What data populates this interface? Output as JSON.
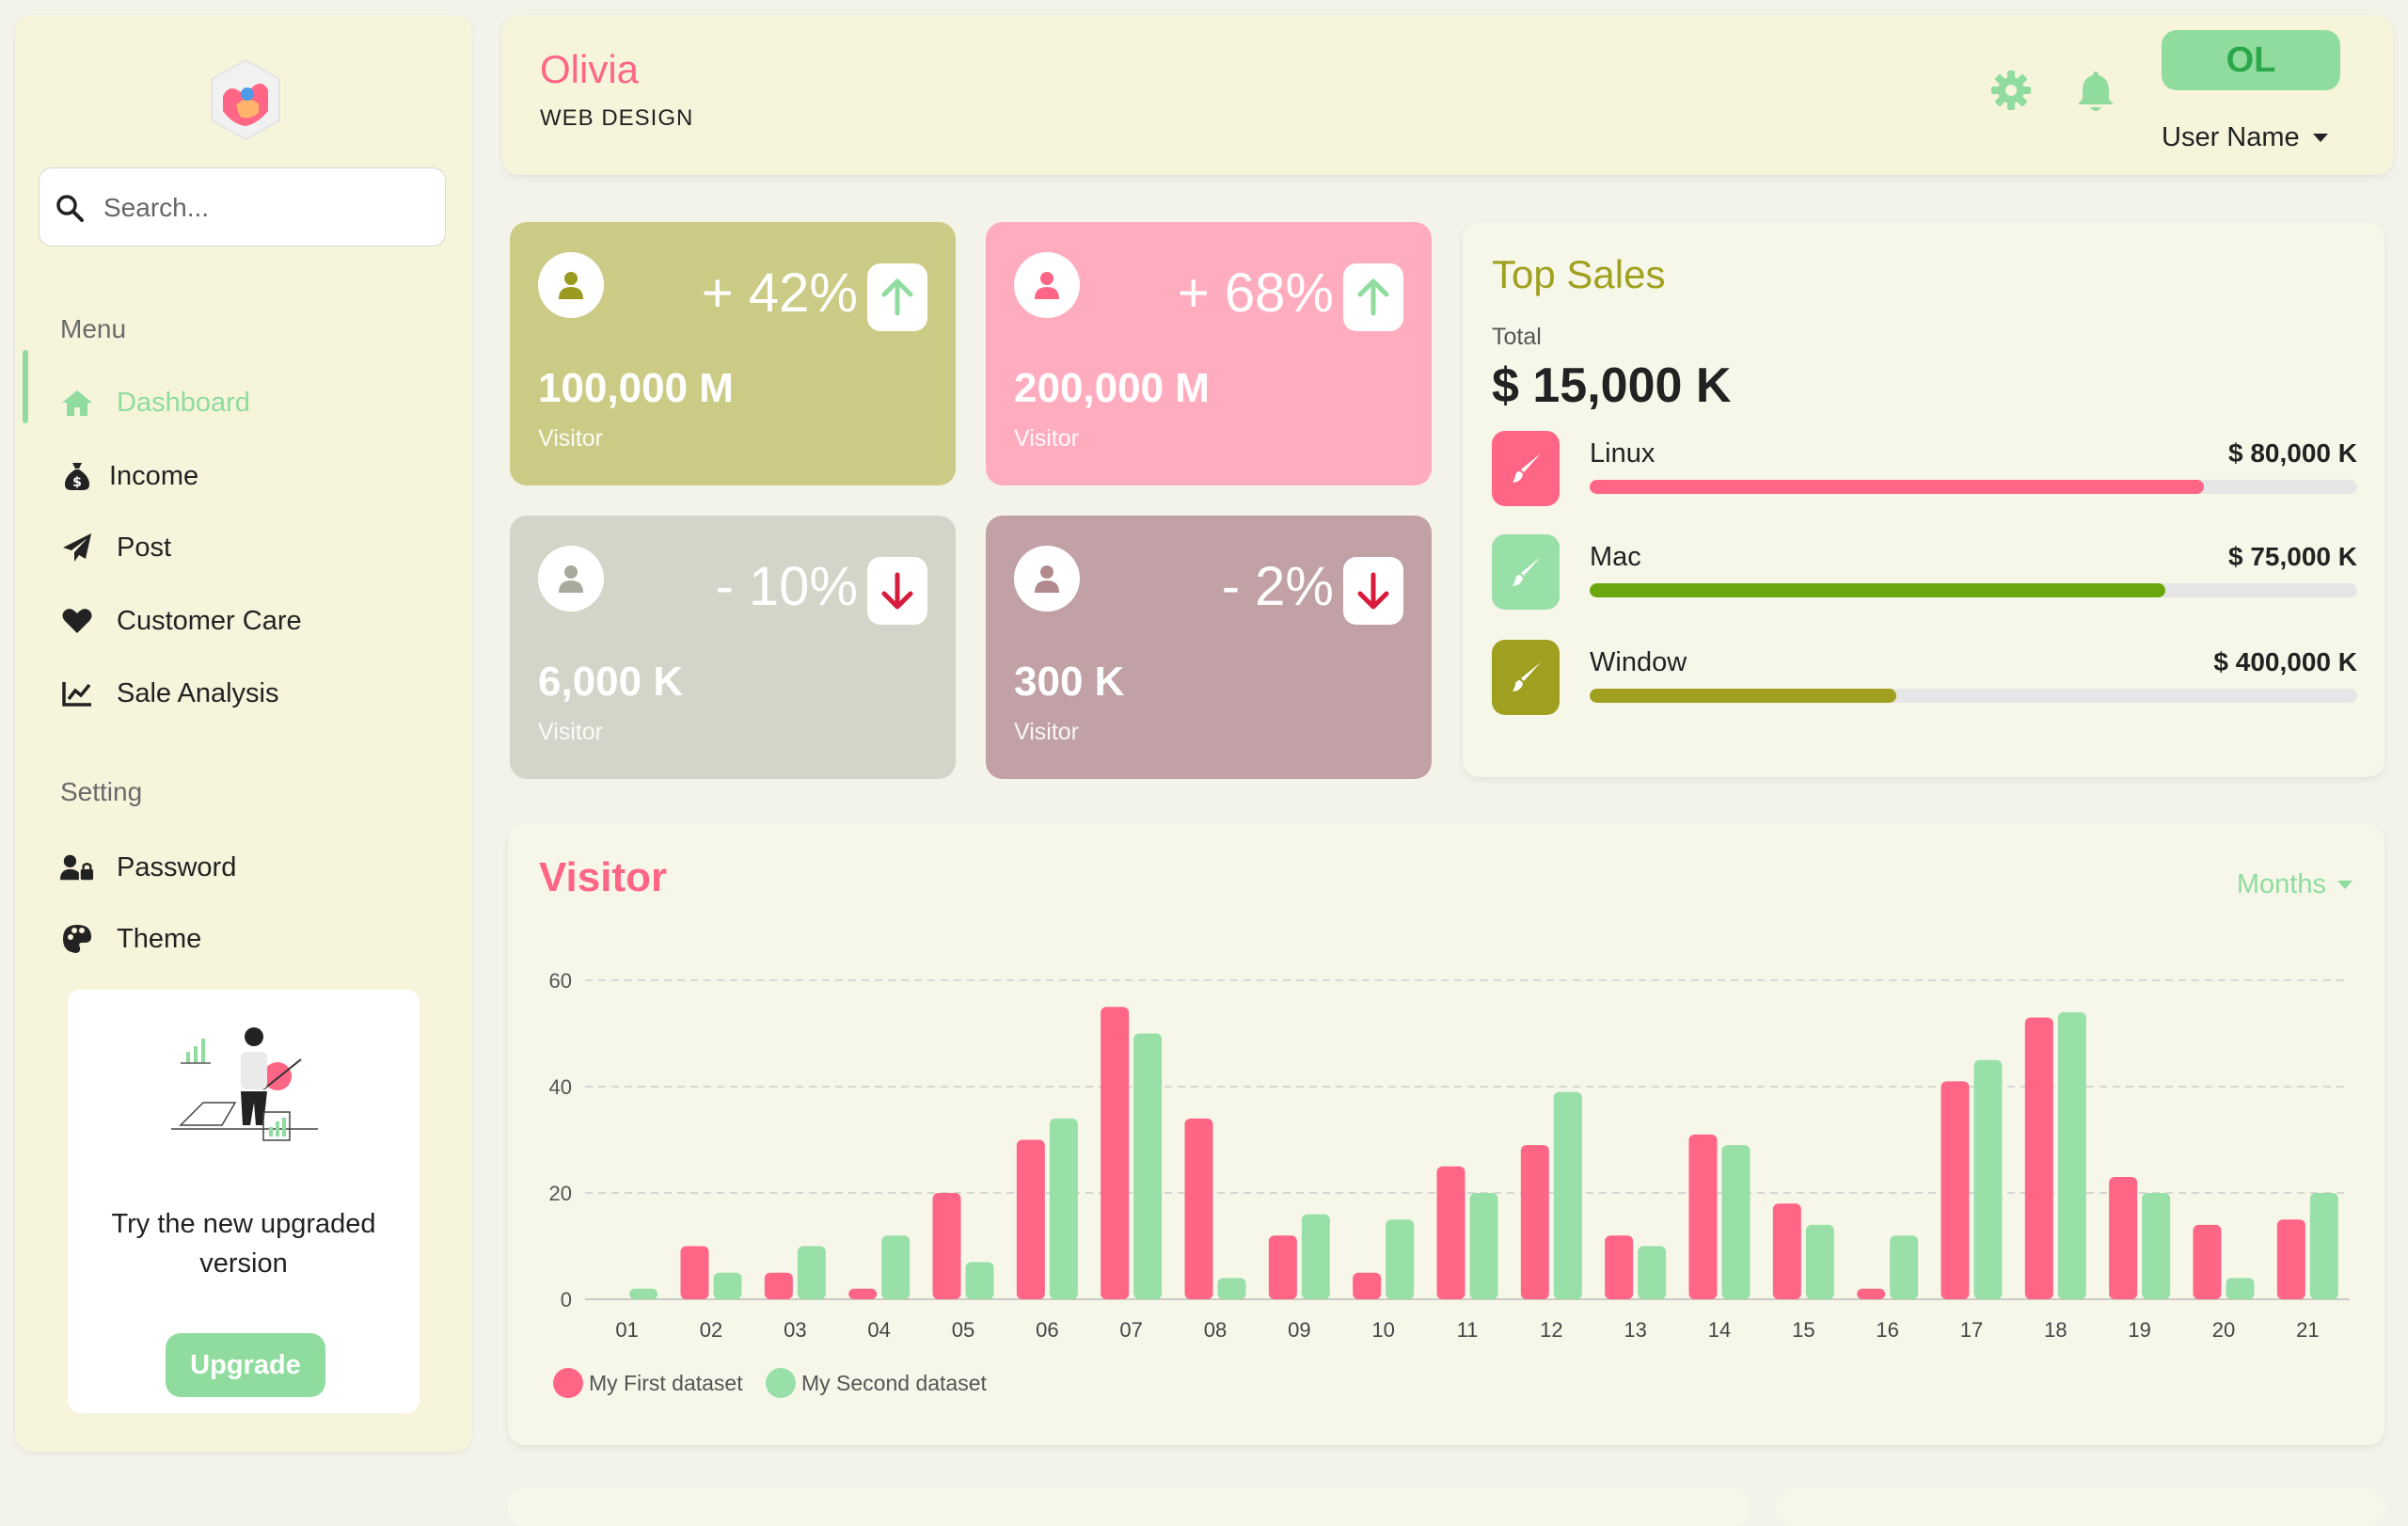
{
  "sidebar": {
    "search_placeholder": "Search...",
    "menu_title": "Menu",
    "menu_items": [
      {
        "label": "Dashboard",
        "icon": "home-icon",
        "active": true
      },
      {
        "label": "Income",
        "icon": "money-bag-icon"
      },
      {
        "label": "Post",
        "icon": "paper-plane-icon"
      },
      {
        "label": "Customer Care",
        "icon": "heart-icon"
      },
      {
        "label": "Sale Analysis",
        "icon": "line-chart-icon"
      }
    ],
    "setting_title": "Setting",
    "setting_items": [
      {
        "label": "Password",
        "icon": "user-lock-icon"
      },
      {
        "label": "Theme",
        "icon": "palette-icon"
      }
    ],
    "upgrade": {
      "text": "Try the new upgraded version",
      "button": "Upgrade"
    }
  },
  "header": {
    "user_first_name": "Olivia",
    "user_role": "WEB DESIGN",
    "avatar_initials": "OL",
    "user_menu_label": "User Name"
  },
  "stats": [
    {
      "change": "+ 42%",
      "direction": "up",
      "value": "100,000 M",
      "label": "Visitor",
      "color": "#cbcb86"
    },
    {
      "change": "+ 68%",
      "direction": "up",
      "value": "200,000 M",
      "label": "Visitor",
      "color": "#ffadbe"
    },
    {
      "change": "- 10%",
      "direction": "down",
      "value": "6,000 K",
      "label": "Visitor",
      "color": "#d4d4c9"
    },
    {
      "change": "- 2%",
      "direction": "down",
      "value": "300 K",
      "label": "Visitor",
      "color": "#c1a1a5"
    }
  ],
  "top_sales": {
    "title": "Top Sales",
    "total_label": "Total",
    "total_value": "$ 15,000 K",
    "items": [
      {
        "name": "Linux",
        "amount": "$ 80,000 K",
        "progress": 0.8,
        "color": "#ff6685"
      },
      {
        "name": "Mac",
        "amount": "$ 75,000 K",
        "progress": 0.75,
        "color": "#6aa60d"
      },
      {
        "name": "Window",
        "amount": "$ 400,000 K",
        "progress": 0.4,
        "color": "#a0a020"
      }
    ]
  },
  "visitor_chart": {
    "title": "Visitor",
    "period_selector": "Months"
  },
  "colors": {
    "accent_green": "#8fdc9e",
    "accent_pink": "#ff6685",
    "olive": "#a0a020",
    "card_bg": "#f7f4dc"
  },
  "chart_data": {
    "type": "bar",
    "categories": [
      "01",
      "02",
      "03",
      "04",
      "05",
      "06",
      "07",
      "08",
      "09",
      "10",
      "11",
      "12",
      "13",
      "14",
      "15",
      "16",
      "17",
      "18",
      "19",
      "20",
      "21"
    ],
    "series": [
      {
        "name": "My First dataset",
        "color": "#ff6685",
        "values": [
          0,
          10,
          5,
          2,
          20,
          30,
          55,
          34,
          12,
          5,
          25,
          29,
          12,
          31,
          18,
          2,
          41,
          53,
          23,
          14,
          15
        ]
      },
      {
        "name": "My Second dataset",
        "color": "#98dfa8",
        "values": [
          2,
          5,
          10,
          12,
          7,
          34,
          50,
          4,
          16,
          15,
          20,
          39,
          10,
          29,
          14,
          12,
          45,
          54,
          20,
          4,
          20
        ]
      }
    ],
    "yticks": [
      0,
      20,
      40,
      60
    ],
    "ylim": [
      0,
      60
    ],
    "grid": true,
    "legend": "bottom-left"
  }
}
